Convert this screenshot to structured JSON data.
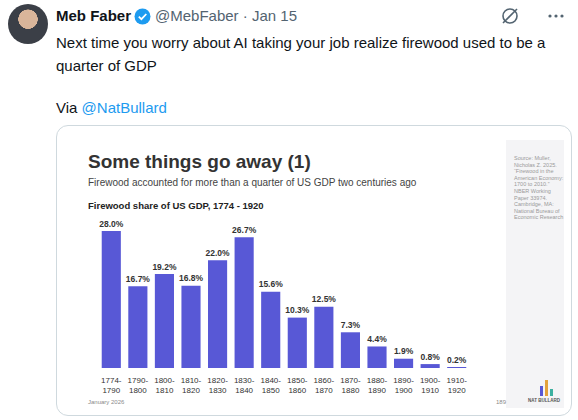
{
  "tweet": {
    "author": "Meb Faber",
    "handle_date": "@MebFaber · Jan 15",
    "text": "Next time you worry about AI taking your job realize firewood used to be a quarter of GDP",
    "via": "Via",
    "mention": "@NatBullard"
  },
  "slide": {
    "source": "Source: Muller, Nicholas Z. 2025. “Firewood in the American Economy: 1700 to 2010.” NBER Working Paper 33974. Cambridge, MA: National Bureau of Economic Research",
    "date": "January 2026",
    "page": "189",
    "brand": "NAT BULLARD"
  },
  "chart_data": {
    "type": "bar",
    "title": "Some things go away (1)",
    "subtitle": "Firewood accounted for more than a quarter of US GDP two centuries ago",
    "heading": "Firewood share of US GDP, 1774 - 1920",
    "categories": [
      "1774-1790",
      "1790-1800",
      "1800-1810",
      "1810-1820",
      "1820-1830",
      "1830-1840",
      "1840-1850",
      "1850-1860",
      "1860-1870",
      "1870-1880",
      "1880-1890",
      "1890-1900",
      "1900-1910",
      "1910-1920"
    ],
    "values": [
      28.0,
      16.7,
      19.2,
      16.8,
      22.0,
      26.7,
      15.6,
      10.3,
      12.5,
      7.3,
      4.4,
      1.9,
      0.8,
      0.2
    ],
    "value_labels": [
      "28.0%",
      "16.7%",
      "19.2%",
      "16.8%",
      "22.0%",
      "26.7%",
      "15.6%",
      "10.3%",
      "12.5%",
      "7.3%",
      "4.4%",
      "1.9%",
      "0.8%",
      "0.2%"
    ],
    "color": "#5858d6",
    "ylim": [
      0,
      28
    ],
    "grid": false,
    "data_labels": true,
    "tick_labels": "x"
  }
}
